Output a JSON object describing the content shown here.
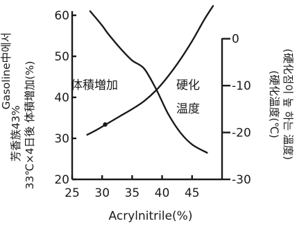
{
  "chart_data": {
    "type": "line",
    "title": "",
    "xlabel": "Acrylnitrile(%)",
    "ylabel_left": [
      "芳香族43%",
      "33℃×4日後 体積増加(%)",
      "Gasoline中에서"
    ],
    "ylabel_right": [
      "(硬化温度(℃)",
      "(硬化점이 높 하는 溫度)"
    ],
    "xlim": [
      25,
      50
    ],
    "ylim_left": [
      20,
      60
    ],
    "ylim_right": [
      -30,
      5
    ],
    "x_ticks": [
      25,
      30,
      35,
      40,
      45
    ],
    "y_left_ticks": [
      20,
      30,
      40,
      50,
      60
    ],
    "y_right_ticks": [
      -30,
      -20,
      -10,
      0
    ],
    "grid": false,
    "series": [
      {
        "name": "体積増加",
        "axis": "left",
        "x": [
          28,
          30,
          31,
          33,
          35,
          37,
          39,
          41,
          43,
          45,
          47.5
        ],
        "y": [
          61,
          57.5,
          55.5,
          52,
          49,
          47,
          42,
          36,
          31.5,
          28.5,
          26.5
        ]
      },
      {
        "name": "硬化温度",
        "axis": "right",
        "x": [
          27.5,
          29,
          31,
          33,
          35,
          37,
          39,
          41,
          43,
          45,
          47,
          48.5
        ],
        "y": [
          -20.5,
          -19.5,
          -18,
          -16.5,
          -15,
          -13.3,
          -11,
          -8,
          -4.5,
          -0.5,
          4,
          7
        ]
      }
    ],
    "markers": [
      {
        "series": "硬化温度",
        "x": 30.5,
        "y": -18.3
      }
    ],
    "annotations": [
      {
        "text": "体積増加"
      },
      {
        "text": "硬化"
      },
      {
        "text": "温度"
      }
    ]
  }
}
